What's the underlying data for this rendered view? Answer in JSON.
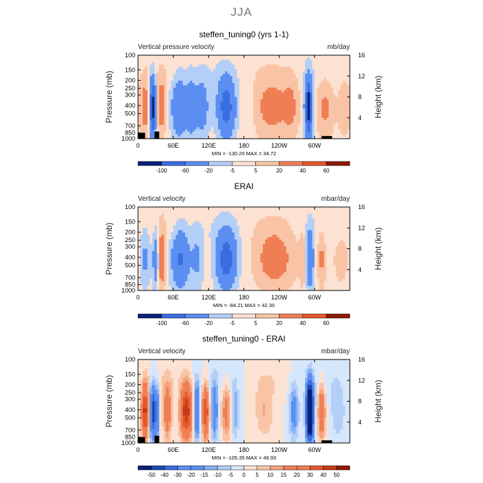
{
  "page": {
    "suptitle": "JJA"
  },
  "panels": [
    {
      "title": "steffen_tuning0 (yrs 1-1)",
      "left_label": "Vertical pressure velocity",
      "right_label": "mb/day",
      "min_max": "MIN = -130.20   MAX =   34.72",
      "colorbar_labels": [
        "-100",
        "-60",
        "-20",
        "-5",
        "5",
        "20",
        "40",
        "60"
      ]
    },
    {
      "title": "ERAI",
      "left_label": "Vertical velocity",
      "right_label": "mbar/day",
      "min_max": "MIN =  -84.21   MAX =   42.30",
      "colorbar_labels": [
        "-100",
        "-60",
        "-20",
        "-5",
        "5",
        "20",
        "40",
        "60"
      ]
    },
    {
      "title": "steffen_tuning0 - ERAI",
      "left_label": "Vertical velocity",
      "right_label": "mbar/day",
      "min_max": "MIN = -105.35   MAX =   49.93",
      "colorbar_labels": [
        "-50",
        "-40",
        "-30",
        "-20",
        "-15",
        "-10",
        "-5",
        "0",
        "5",
        "10",
        "15",
        "20",
        "30",
        "40",
        "50"
      ]
    }
  ],
  "colors": {
    "diverging": [
      "#08207a",
      "#1f47b4",
      "#3a6de0",
      "#5b8ef0",
      "#86b0f5",
      "#b3cff8",
      "#d6e6fb",
      "#fce2d2",
      "#f9c4a6",
      "#f6a47e",
      "#ef7e55",
      "#e4582f",
      "#c83a18",
      "#8e1a06"
    ],
    "terrain": "#000000"
  },
  "chart_data": [
    {
      "type": "heatmap",
      "xlabel": "",
      "ylabel": "Pressure (mb)",
      "ylabel_right": "Height (km)",
      "x_ticks": [
        "0",
        "60E",
        "120E",
        "180",
        "120W",
        "60W"
      ],
      "x_tick_values": [
        0,
        60,
        120,
        180,
        240,
        300
      ],
      "xlim": [
        0,
        360
      ],
      "y_ticks": [
        "100",
        "150",
        "200",
        "250",
        "300",
        "400",
        "500",
        "700",
        "850",
        "1000"
      ],
      "y_tick_values": [
        100,
        150,
        200,
        250,
        300,
        400,
        500,
        700,
        850,
        1000
      ],
      "ylim": [
        1000,
        100
      ],
      "y_scale": "log",
      "y2_ticks": [
        "4",
        "8",
        "12",
        "16"
      ],
      "y2_tick_values": [
        4,
        8,
        12,
        16
      ],
      "levels": [
        -100,
        -60,
        -20,
        -5,
        5,
        20,
        40,
        60
      ],
      "min": -130.2,
      "max": 34.72,
      "features": [
        {
          "lon": 12,
          "width": 8,
          "amp": 32
        },
        {
          "lon": 25,
          "width": 5,
          "amp": -120
        },
        {
          "lon": 40,
          "width": 6,
          "amp": 35
        },
        {
          "lon": 70,
          "width": 12,
          "amp": -60
        },
        {
          "lon": 90,
          "width": 8,
          "amp": -45
        },
        {
          "lon": 108,
          "width": 12,
          "amp": -40
        },
        {
          "lon": 150,
          "width": 14,
          "amp": -85
        },
        {
          "lon": 190,
          "width": 8,
          "amp": -10
        },
        {
          "lon": 228,
          "width": 30,
          "amp": 30
        },
        {
          "lon": 260,
          "width": 12,
          "amp": 20
        },
        {
          "lon": 290,
          "width": 6,
          "amp": -130
        },
        {
          "lon": 318,
          "width": 14,
          "amp": 25
        },
        {
          "lon": 350,
          "width": 10,
          "amp": 15
        }
      ],
      "terrain": [
        [
          0,
          850
        ],
        [
          12,
          900
        ],
        [
          28,
          820
        ],
        [
          36,
          960
        ],
        [
          312,
          950
        ],
        [
          330,
          930
        ]
      ]
    },
    {
      "type": "heatmap",
      "xlabel": "",
      "ylabel": "Pressure (mb)",
      "ylabel_right": "Height (km)",
      "x_ticks": [
        "0",
        "60E",
        "120E",
        "180",
        "120W",
        "60W"
      ],
      "x_tick_values": [
        0,
        60,
        120,
        180,
        240,
        300
      ],
      "xlim": [
        0,
        360
      ],
      "y_ticks": [
        "100",
        "150",
        "200",
        "250",
        "300",
        "400",
        "500",
        "700",
        "850",
        "1000"
      ],
      "y_tick_values": [
        100,
        150,
        200,
        250,
        300,
        400,
        500,
        700,
        850,
        1000
      ],
      "ylim": [
        1000,
        100
      ],
      "y_scale": "log",
      "y2_ticks": [
        "4",
        "8",
        "12",
        "16"
      ],
      "y2_tick_values": [
        4,
        8,
        12,
        16
      ],
      "levels": [
        -100,
        -60,
        -20,
        -5,
        5,
        20,
        40,
        60
      ],
      "min": -84.21,
      "max": 42.3,
      "features": [
        {
          "lon": 12,
          "width": 8,
          "amp": -25
        },
        {
          "lon": 30,
          "width": 5,
          "amp": -40
        },
        {
          "lon": 40,
          "width": 6,
          "amp": 42
        },
        {
          "lon": 72,
          "width": 14,
          "amp": -65
        },
        {
          "lon": 100,
          "width": 10,
          "amp": -25
        },
        {
          "lon": 150,
          "width": 16,
          "amp": -84
        },
        {
          "lon": 232,
          "width": 30,
          "amp": 35
        },
        {
          "lon": 280,
          "width": 5,
          "amp": 15
        },
        {
          "lon": 292,
          "width": 6,
          "amp": -60
        },
        {
          "lon": 312,
          "width": 6,
          "amp": 25
        },
        {
          "lon": 345,
          "width": 14,
          "amp": 10
        }
      ],
      "terrain": []
    },
    {
      "type": "heatmap",
      "xlabel": "",
      "ylabel": "Pressure (mb)",
      "ylabel_right": "Height (km)",
      "x_ticks": [
        "0",
        "60E",
        "120E",
        "180",
        "120W",
        "60W"
      ],
      "x_tick_values": [
        0,
        60,
        120,
        180,
        240,
        300
      ],
      "xlim": [
        0,
        360
      ],
      "y_ticks": [
        "100",
        "150",
        "200",
        "250",
        "300",
        "400",
        "500",
        "700",
        "850",
        "1000"
      ],
      "y_tick_values": [
        100,
        150,
        200,
        250,
        300,
        400,
        500,
        700,
        850,
        1000
      ],
      "ylim": [
        1000,
        100
      ],
      "y_scale": "log",
      "y2_ticks": [
        "4",
        "8",
        "12",
        "16"
      ],
      "y2_tick_values": [
        4,
        8,
        12,
        16
      ],
      "levels": [
        -50,
        -40,
        -30,
        -20,
        -15,
        -10,
        -5,
        0,
        5,
        10,
        15,
        20,
        30,
        40,
        50
      ],
      "min": -105.35,
      "max": 49.93,
      "features": [
        {
          "lon": 12,
          "width": 6,
          "amp": 45
        },
        {
          "lon": 25,
          "width": 4,
          "amp": -50
        },
        {
          "lon": 32,
          "width": 3,
          "amp": -40
        },
        {
          "lon": 50,
          "width": 7,
          "amp": 25
        },
        {
          "lon": 82,
          "width": 10,
          "amp": 48
        },
        {
          "lon": 100,
          "width": 5,
          "amp": -35
        },
        {
          "lon": 115,
          "width": 6,
          "amp": 40
        },
        {
          "lon": 130,
          "width": 6,
          "amp": -25
        },
        {
          "lon": 150,
          "width": 8,
          "amp": 20
        },
        {
          "lon": 165,
          "width": 6,
          "amp": -15
        },
        {
          "lon": 215,
          "width": 16,
          "amp": 10
        },
        {
          "lon": 265,
          "width": 8,
          "amp": -20
        },
        {
          "lon": 292,
          "width": 6,
          "amp": -105
        },
        {
          "lon": 312,
          "width": 6,
          "amp": 30
        },
        {
          "lon": 340,
          "width": 12,
          "amp": -10
        }
      ],
      "terrain": [
        [
          0,
          850
        ],
        [
          12,
          900
        ],
        [
          28,
          820
        ],
        [
          36,
          960
        ],
        [
          312,
          950
        ],
        [
          330,
          930
        ]
      ]
    }
  ]
}
